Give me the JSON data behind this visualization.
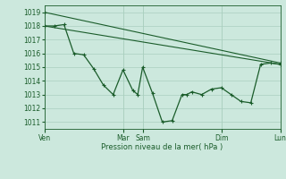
{
  "bg_color": "#cce8dd",
  "grid_color": "#aacfbf",
  "line_color": "#1a5c2a",
  "marker_color": "#1a5c2a",
  "ylabel_ticks": [
    1011,
    1012,
    1013,
    1014,
    1015,
    1016,
    1017,
    1018,
    1019
  ],
  "ymin": 1010.5,
  "ymax": 1019.5,
  "xlabel": "Pression niveau de la mer( hPa )",
  "xtick_positions": [
    0,
    96,
    120,
    216,
    288
  ],
  "xtick_labels": [
    "Ven",
    "Mar",
    "Sam",
    "Dim",
    "Lun"
  ],
  "series1_x": [
    0,
    288
  ],
  "series1_y": [
    1018.0,
    1015.2
  ],
  "series2_x": [
    0,
    288
  ],
  "series2_y": [
    1019.0,
    1015.3
  ],
  "series3_x": [
    0,
    12,
    24,
    36,
    48,
    60,
    72,
    84,
    96,
    108,
    114,
    120,
    132,
    144,
    156,
    168,
    174,
    180,
    192,
    204,
    216,
    228,
    240,
    252,
    264,
    276,
    288
  ],
  "series3_y": [
    1018.0,
    1018.0,
    1018.1,
    1016.0,
    1015.9,
    1014.9,
    1013.7,
    1013.0,
    1014.8,
    1013.3,
    1013.0,
    1015.0,
    1013.1,
    1011.0,
    1011.1,
    1013.0,
    1013.0,
    1013.2,
    1013.0,
    1013.4,
    1013.5,
    1013.0,
    1012.5,
    1012.4,
    1015.2,
    1015.3,
    1015.2
  ],
  "figsize": [
    3.2,
    2.0
  ],
  "dpi": 100
}
